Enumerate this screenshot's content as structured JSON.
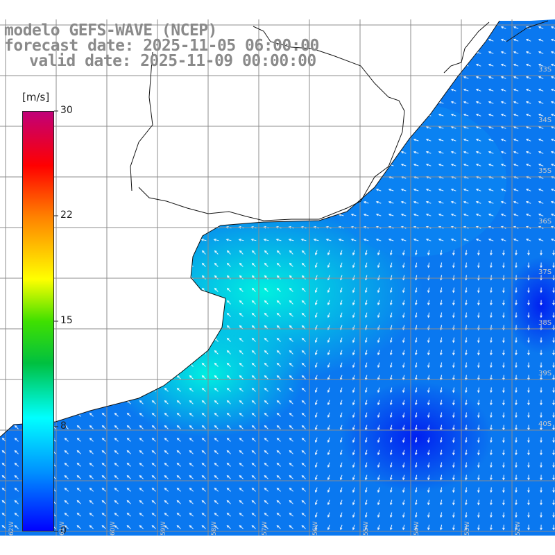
{
  "title": {
    "line1": "modelo GEFS-WAVE (NCEP)",
    "line2": "forecast date: 2025-11-05 06:00:00",
    "line3": "valid date: 2025-11-09 00:00:00"
  },
  "colorbar": {
    "unit": "[m/s]",
    "min": 0,
    "max": 30,
    "ticks": [
      "30",
      "22",
      "15",
      "8",
      "0"
    ],
    "colors": [
      "#0000ff",
      "#00a0ff",
      "#00ffff",
      "#00ff00",
      "#ffff00",
      "#ff8000",
      "#ff0000",
      "#c00080"
    ]
  },
  "map": {
    "lat_labels": [
      "33S",
      "34S",
      "35S",
      "36S",
      "37S",
      "38S",
      "39S",
      "40S"
    ],
    "lon_labels": [
      "62W",
      "61W",
      "60W",
      "59W",
      "58W",
      "57W",
      "56W",
      "55W",
      "54W",
      "53W",
      "52W"
    ]
  }
}
